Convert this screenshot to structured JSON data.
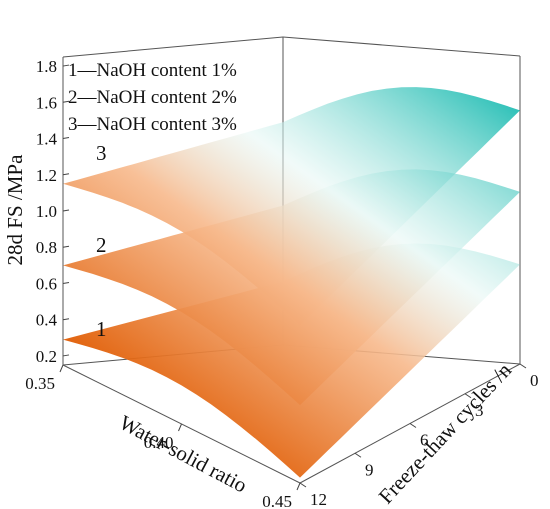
{
  "chart_data": {
    "type": "surface3d",
    "zlabel": "28d FS /MPa",
    "xlabel": "Water-solid ratio",
    "ylabel": "Freeze-thaw cycles /n",
    "z_ticks": [
      "0.2",
      "0.4",
      "0.6",
      "0.8",
      "1.0",
      "1.2",
      "1.4",
      "1.6",
      "1.8"
    ],
    "x_ticks": [
      "0.35",
      "0.40",
      "0.45"
    ],
    "y_ticks": [
      "0",
      "3",
      "6",
      "9",
      "12"
    ],
    "zlim": [
      0.15,
      1.85
    ],
    "xlim": [
      0.35,
      0.45
    ],
    "ylim": [
      0,
      12
    ],
    "legend": [
      "1—NaOH content 1%",
      "2—NaOH content 2%",
      "3—NaOH content 3%"
    ],
    "legend_position": "top-left",
    "colormap": [
      "#e05a00",
      "#f7b98c",
      "#e6f7f4",
      "#11b8ae"
    ],
    "series": [
      {
        "tag": "1",
        "name": "NaOH content 1%",
        "corners": {
          "x0.35_n0": 0.5,
          "x0.45_n0": 0.7,
          "x0.35_n12": 0.29,
          "x0.45_n12": 0.18
        },
        "peak": 0.46
      },
      {
        "tag": "2",
        "name": "NaOH content 2%",
        "corners": {
          "x0.35_n0": 0.92,
          "x0.45_n0": 1.1,
          "x0.35_n12": 0.7,
          "x0.45_n12": 0.58
        },
        "peak": 0.88
      },
      {
        "tag": "3",
        "name": "NaOH content 3%",
        "corners": {
          "x0.35_n0": 1.38,
          "x0.45_n0": 1.55,
          "x0.35_n12": 1.15,
          "x0.45_n12": 1.02
        },
        "peak": 1.34
      }
    ]
  }
}
